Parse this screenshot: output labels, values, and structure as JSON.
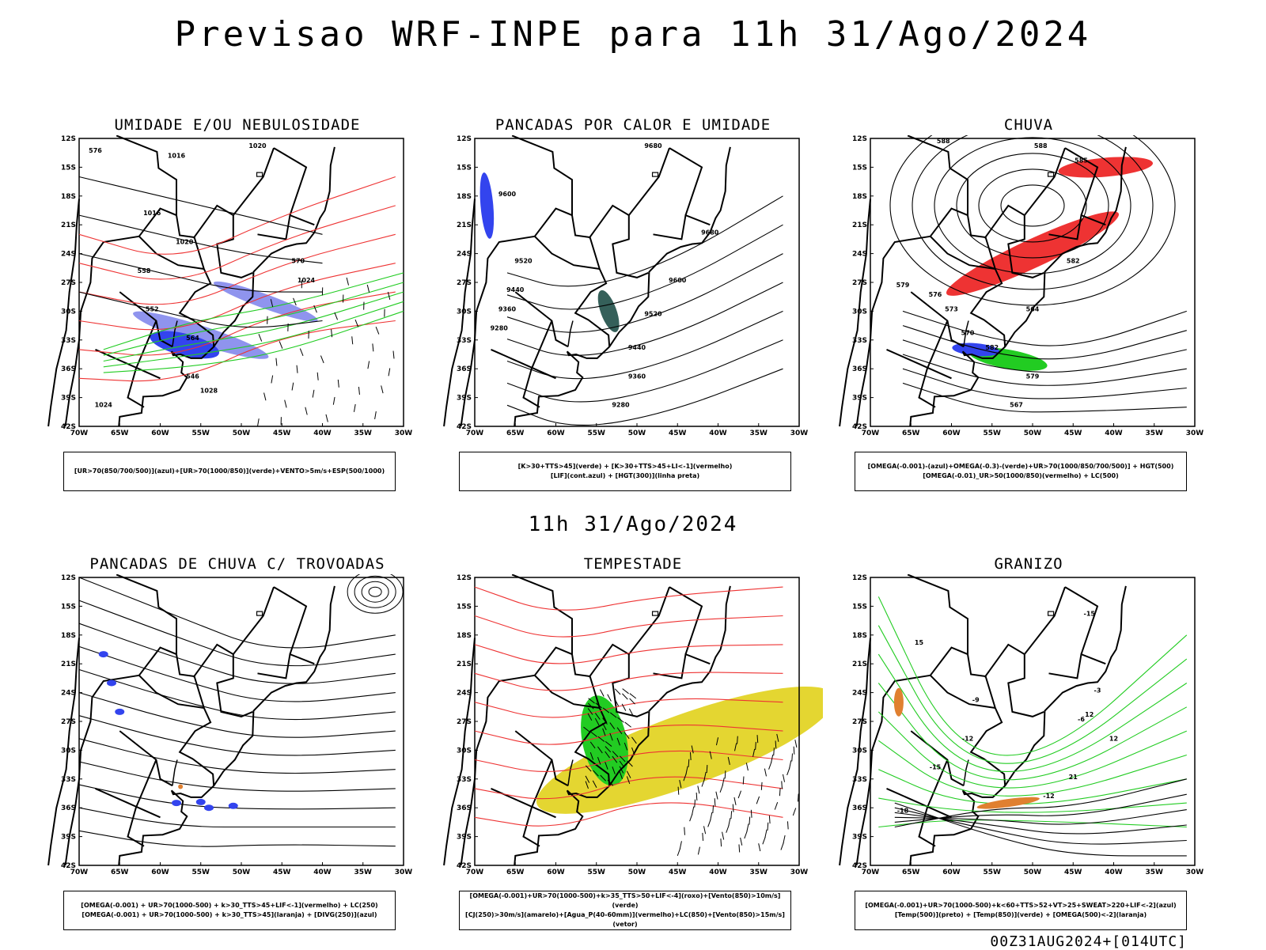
{
  "header": {
    "title": "Previsao WRF-INPE  para 11h 31/Ago/2024"
  },
  "middle_label": "11h 31/Ago/2024",
  "footer": "00Z31AUG2024+[014UTC]",
  "axes": {
    "lat_labels": [
      "12S",
      "15S",
      "18S",
      "21S",
      "24S",
      "27S",
      "30S",
      "33S",
      "36S",
      "39S",
      "42S"
    ],
    "lon_labels": [
      "70W",
      "65W",
      "60W",
      "55W",
      "50W",
      "45W",
      "40W",
      "35W",
      "30W"
    ]
  },
  "panels": [
    {
      "title": "UMIDADE E/OU NEBULOSIDADE",
      "legend": [
        "[UR>70(850/700/500)](azul)+[UR>70(1000/850)](verde)+VENTO>5m/s+ESP(500/1000)"
      ],
      "contour_labels": [
        "1016",
        "1016",
        "1020",
        "1020",
        "1024",
        "1024",
        "1028",
        "576",
        "570",
        "564",
        "558",
        "552",
        "546"
      ]
    },
    {
      "title": "PANCADAS POR CALOR E UMIDADE",
      "legend": [
        "[K>30+TTS>45](verde) + [K>30+TTS>45+LI<-1](vermelho)",
        "[LIF](cont.azul) + [HGT(300)](linha preta)"
      ],
      "contour_labels": [
        "9680",
        "9600",
        "9520",
        "9440",
        "9360",
        "9280",
        "9600",
        "9520",
        "9440",
        "9360",
        "9280",
        "9680"
      ]
    },
    {
      "title": "CHUVA",
      "legend": [
        "[OMEGA(-0.001)-(azul)+OMEGA(-0.3)-(verde)+UR>70(1000/850/700/500)] + HGT(500)",
        "[OMEGA(-0.01)_UR>50(1000/850)(vermelho) + LC(500)"
      ],
      "contour_labels": [
        "588",
        "588",
        "585",
        "582",
        "579",
        "576",
        "573",
        "570",
        "567",
        "564",
        "582",
        "579"
      ]
    },
    {
      "title": "PANCADAS DE CHUVA C/ TROVOADAS",
      "legend": [
        "[OMEGA(-0.001) + UR>70(1000-500) + k>30_TTS>45+LIF<-1](vermelho) + LC(250)",
        "[OMEGA(-0.001) + UR>70(1000-500) + k>30_TTS>45](laranja) + [DIVG(250)](azul)"
      ],
      "contour_labels": []
    },
    {
      "title": "TEMPESTADE",
      "legend": [
        "[OMEGA(-0.001)+UR>70(1000-500)+k>35_TTS>50+LIF<-4](roxo)+[Vento(850)>10m/s](verde)",
        "[CJ(250)>30m/s](amarelo)+[Agua_P(40-60mm)](vermelho)+LC(850)+[Vento(850)>15m/s](vetor)"
      ],
      "contour_labels": []
    },
    {
      "title": "GRANIZO",
      "legend": [
        "[OMEGA(-0.001)+UR>70(1000-500)+k<60+TTS>52+VT>25+SWEAT>220+LIF<-2](azul)",
        "[Temp(500)](preto) + [Temp(850)](verde) + [OMEGA(500)<-2](laranja)"
      ],
      "contour_labels": [
        "-18",
        "-15",
        "-12",
        "-9",
        "-6",
        "-3",
        "12",
        "12",
        "15",
        "21",
        "-12",
        "-15"
      ]
    }
  ],
  "colors": {
    "coast": "#000000",
    "red": "#ee3333",
    "green": "#22cc22",
    "blue": "#3344ee",
    "lavender": "#8f94ee",
    "yellow": "#e4d631",
    "orange": "#e08030",
    "teal": "#35605a"
  }
}
